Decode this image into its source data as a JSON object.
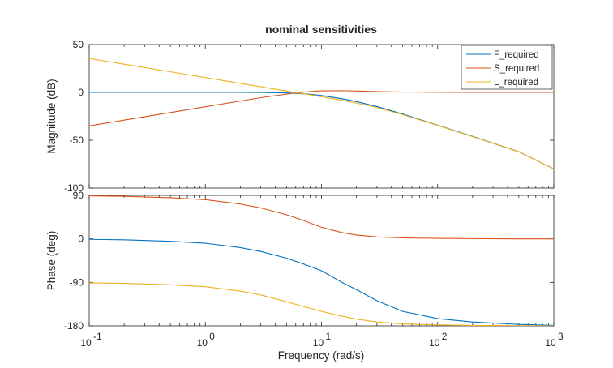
{
  "chart_data": {
    "type": "line",
    "title": "nominal sensitivities",
    "xlabel": "Frequency  (rad/s)",
    "xscale": "log",
    "xlim": [
      0.1,
      1000
    ],
    "x_ticks": [
      "10",
      "10",
      "10",
      "10",
      "10"
    ],
    "x_tick_exponents": [
      "-1",
      "0",
      "1",
      "2",
      "3"
    ],
    "legend": {
      "placement": "top-right",
      "entries": [
        "F_required",
        "S_required",
        "L_required"
      ]
    },
    "colors": {
      "F_required": "#0072BD",
      "S_required": "#D95319",
      "L_required": "#EDB120"
    },
    "grid": false,
    "panels": [
      {
        "ylabel": "Magnitude (dB)",
        "ylim": [
          -100,
          50
        ],
        "yticks": [
          "50",
          "0",
          "-50",
          "-100"
        ],
        "x": [
          0.1,
          0.2,
          0.5,
          1,
          2,
          3,
          5,
          6,
          8,
          10,
          15,
          20,
          30,
          50,
          100,
          200,
          500,
          1000
        ],
        "series": [
          {
            "name": "F_required",
            "values": [
              0,
              0,
              0,
              0,
              0,
              -0.1,
              -0.6,
              -1,
              -1.9,
              -3.2,
              -6.6,
              -9.6,
              -14.8,
              -22.6,
              -34.2,
              -46,
              -62,
              -80
            ]
          },
          {
            "name": "S_required",
            "values": [
              -35,
              -29,
              -21,
              -15,
              -9,
              -5.5,
              -1.8,
              -0.6,
              0.9,
              1.6,
              1.8,
              1.4,
              0.9,
              0.4,
              0.1,
              0,
              0,
              0
            ]
          },
          {
            "name": "L_required",
            "values": [
              35.5,
              29.5,
              21.5,
              15.5,
              9.4,
              5.9,
              1.4,
              -0.3,
              -2.5,
              -4.5,
              -8.2,
              -11.1,
              -15.8,
              -23.2,
              -34.5,
              -46.3,
              -62.1,
              -80
            ]
          }
        ]
      },
      {
        "ylabel": "Phase (deg)",
        "ylim": [
          -180,
          90
        ],
        "yticks": [
          "90",
          "0",
          "-90",
          "-180"
        ],
        "x": [
          0.1,
          0.2,
          0.5,
          1,
          2,
          3,
          5,
          7,
          10,
          15,
          20,
          30,
          50,
          100,
          200,
          500,
          1000
        ],
        "series": [
          {
            "name": "F_required",
            "values": [
              -1,
              -2,
              -5,
              -9,
              -18,
              -26,
              -40,
              -52,
              -66,
              -90,
              -105,
              -128,
              -150,
              -165,
              -172,
              -177,
              -179
            ]
          },
          {
            "name": "S_required",
            "values": [
              89,
              88,
              85,
              81,
              72,
              64,
              50,
              38,
              24,
              13,
              8,
              4,
              2,
              1,
              0.5,
              0,
              0
            ]
          },
          {
            "name": "L_required",
            "values": [
              -91,
              -92,
              -95,
              -99,
              -108,
              -116,
              -130,
              -140,
              -150,
              -160,
              -166,
              -172,
              -176,
              -178,
              -179,
              -179.5,
              -180
            ]
          }
        ]
      }
    ]
  }
}
